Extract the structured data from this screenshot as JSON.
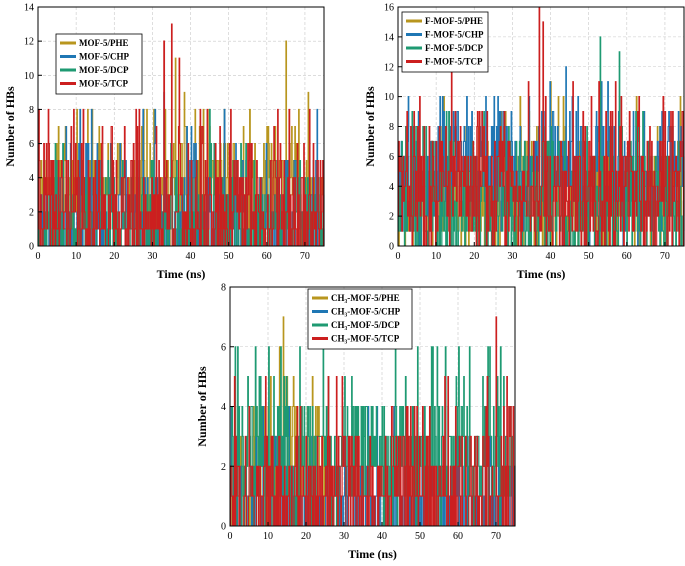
{
  "chart_data": [
    {
      "type": "line",
      "style": "step",
      "xlabel": "Time (ns)",
      "ylabel": "Number of HBs",
      "xlim": [
        0,
        75
      ],
      "ylim": [
        0,
        14
      ],
      "xticks": [
        "0",
        "10",
        "20",
        "30",
        "40",
        "50",
        "60",
        "70"
      ],
      "yticks": [
        "0",
        "2",
        "4",
        "6",
        "8",
        "10",
        "12",
        "14"
      ],
      "legend_position": "top-left",
      "series": [
        {
          "name": "MOF-5/PHE",
          "color": "#b8961e",
          "seed": 11,
          "weights": [
            [
              0,
              0.06
            ],
            [
              1,
              0.12
            ],
            [
              2,
              0.18
            ],
            [
              3,
              0.2
            ],
            [
              4,
              0.18
            ],
            [
              5,
              0.12
            ],
            [
              6,
              0.07
            ],
            [
              7,
              0.04
            ],
            [
              8,
              0.02
            ],
            [
              9,
              0.005
            ]
          ],
          "peaks": [
            [
              36,
              11
            ],
            [
              65,
              12
            ]
          ]
        },
        {
          "name": "MOF-5/CHP",
          "color": "#1f77b4",
          "seed": 23,
          "weights": [
            [
              0,
              0.3
            ],
            [
              1,
              0.3
            ],
            [
              2,
              0.15
            ],
            [
              3,
              0.08
            ],
            [
              4,
              0.06
            ],
            [
              5,
              0.04
            ],
            [
              6,
              0.04
            ],
            [
              7,
              0.02
            ],
            [
              8,
              0.01
            ]
          ],
          "peaks": [
            [
              33,
              9
            ]
          ]
        },
        {
          "name": "MOF-5/DCP",
          "color": "#1e9a72",
          "seed": 37,
          "weights": [
            [
              0,
              0.35
            ],
            [
              1,
              0.28
            ],
            [
              2,
              0.15
            ],
            [
              3,
              0.1
            ],
            [
              4,
              0.06
            ],
            [
              5,
              0.04
            ],
            [
              6,
              0.02
            ]
          ],
          "peaks": [
            [
              45,
              8
            ]
          ]
        },
        {
          "name": "MOF-5/TCP",
          "color": "#cc1f1f",
          "seed": 41,
          "weights": [
            [
              0,
              0.25
            ],
            [
              1,
              0.2
            ],
            [
              2,
              0.15
            ],
            [
              3,
              0.12
            ],
            [
              4,
              0.1
            ],
            [
              5,
              0.08
            ],
            [
              6,
              0.05
            ],
            [
              7,
              0.03
            ],
            [
              8,
              0.02
            ]
          ],
          "peaks": [
            [
              35,
              13
            ],
            [
              33,
              12
            ],
            [
              37,
              11
            ]
          ]
        }
      ]
    },
    {
      "type": "line",
      "style": "step",
      "xlabel": "Time (ns)",
      "ylabel": "Number of HBs",
      "xlim": [
        0,
        75
      ],
      "ylim": [
        0,
        16
      ],
      "xticks": [
        "0",
        "10",
        "20",
        "30",
        "40",
        "50",
        "60",
        "70"
      ],
      "yticks": [
        "0",
        "2",
        "4",
        "6",
        "8",
        "10",
        "12",
        "14",
        "16"
      ],
      "legend_position": "top-left",
      "series": [
        {
          "name": "F-MOF-5/PHE",
          "color": "#b8961e",
          "seed": 53,
          "weights": [
            [
              0,
              0.1
            ],
            [
              1,
              0.12
            ],
            [
              2,
              0.15
            ],
            [
              3,
              0.15
            ],
            [
              4,
              0.14
            ],
            [
              5,
              0.12
            ],
            [
              6,
              0.08
            ],
            [
              7,
              0.06
            ],
            [
              8,
              0.04
            ],
            [
              9,
              0.02
            ],
            [
              10,
              0.01
            ]
          ],
          "peaks": [
            [
              40,
              11
            ]
          ]
        },
        {
          "name": "F-MOF-5/CHP",
          "color": "#1f77b4",
          "seed": 67,
          "weights": [
            [
              0,
              0.02
            ],
            [
              1,
              0.05
            ],
            [
              2,
              0.08
            ],
            [
              3,
              0.12
            ],
            [
              4,
              0.14
            ],
            [
              5,
              0.15
            ],
            [
              6,
              0.14
            ],
            [
              7,
              0.12
            ],
            [
              8,
              0.08
            ],
            [
              9,
              0.06
            ],
            [
              10,
              0.03
            ],
            [
              11,
              0.01
            ]
          ],
          "peaks": [
            [
              44,
              12
            ],
            [
              55,
              11
            ]
          ]
        },
        {
          "name": "F-MOF-5/DCP",
          "color": "#1e9a72",
          "seed": 71,
          "weights": [
            [
              0,
              0.2
            ],
            [
              1,
              0.18
            ],
            [
              2,
              0.15
            ],
            [
              3,
              0.12
            ],
            [
              4,
              0.1
            ],
            [
              5,
              0.08
            ],
            [
              6,
              0.07
            ],
            [
              7,
              0.05
            ],
            [
              8,
              0.03
            ],
            [
              9,
              0.02
            ]
          ],
          "peaks": [
            [
              53,
              14
            ],
            [
              58,
              13
            ]
          ]
        },
        {
          "name": "F-MOF-5/TCP",
          "color": "#cc1f1f",
          "seed": 83,
          "weights": [
            [
              0,
              0.1
            ],
            [
              1,
              0.1
            ],
            [
              2,
              0.12
            ],
            [
              3,
              0.13
            ],
            [
              4,
              0.13
            ],
            [
              5,
              0.12
            ],
            [
              6,
              0.1
            ],
            [
              7,
              0.08
            ],
            [
              8,
              0.05
            ],
            [
              9,
              0.04
            ],
            [
              10,
              0.02
            ],
            [
              11,
              0.01
            ]
          ],
          "peaks": [
            [
              37,
              16
            ],
            [
              38,
              15
            ],
            [
              14,
              12
            ]
          ]
        }
      ]
    },
    {
      "type": "line",
      "style": "step",
      "xlabel": "Time (ns)",
      "ylabel": "Number of HBs",
      "xlim": [
        0,
        75
      ],
      "ylim": [
        0,
        8
      ],
      "xticks": [
        "0",
        "10",
        "20",
        "30",
        "40",
        "50",
        "60",
        "70"
      ],
      "yticks": [
        "0",
        "2",
        "4",
        "6",
        "8"
      ],
      "legend_position": "top-center",
      "series": [
        {
          "name": "CH₃-MOF-5/PHE",
          "color": "#b8961e",
          "seed": 97,
          "range": [
            0,
            25
          ],
          "weights": [
            [
              0,
              0.15
            ],
            [
              1,
              0.25
            ],
            [
              2,
              0.25
            ],
            [
              3,
              0.18
            ],
            [
              4,
              0.1
            ],
            [
              5,
              0.05
            ]
          ],
          "peaks": [
            [
              14,
              7
            ],
            [
              13,
              6
            ]
          ]
        },
        {
          "name": "CH₃-MOF-5/CHP",
          "color": "#1f77b4",
          "seed": 101,
          "weights": [
            [
              0,
              0.4
            ],
            [
              1,
              0.35
            ],
            [
              2,
              0.15
            ],
            [
              3,
              0.07
            ],
            [
              4,
              0.03
            ]
          ],
          "peaks": []
        },
        {
          "name": "CH₃-MOF-5/DCP",
          "color": "#1e9a72",
          "seed": 113,
          "weights": [
            [
              0,
              0.1
            ],
            [
              1,
              0.18
            ],
            [
              2,
              0.25
            ],
            [
              3,
              0.25
            ],
            [
              4,
              0.15
            ],
            [
              5,
              0.05
            ],
            [
              6,
              0.02
            ]
          ],
          "peaks": [
            [
              53,
              6
            ],
            [
              63,
              6
            ]
          ]
        },
        {
          "name": "CH₃-MOF-5/TCP",
          "color": "#cc1f1f",
          "seed": 127,
          "weights": [
            [
              0,
              0.35
            ],
            [
              1,
              0.3
            ],
            [
              2,
              0.18
            ],
            [
              3,
              0.1
            ],
            [
              4,
              0.05
            ],
            [
              5,
              0.02
            ]
          ],
          "peaks": [
            [
              70,
              7
            ]
          ]
        }
      ]
    }
  ]
}
